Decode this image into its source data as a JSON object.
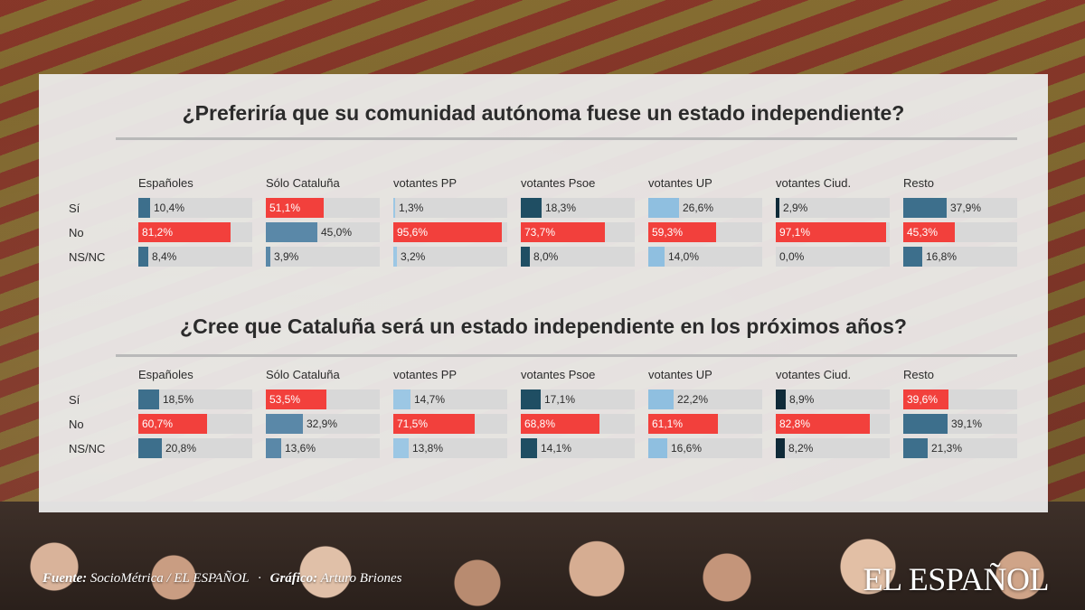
{
  "colors": {
    "red": "#f2403c",
    "blue_light": "#8fbfe0",
    "blue_mid": "#5a88a8",
    "blue_dark": "#1f4e63",
    "navy": "#0f2a38",
    "cell_bg": "#d8d8d8"
  },
  "chart_data": [
    {
      "type": "bar",
      "title": "¿Preferiría que su comunidad autónoma fuese un estado independiente?",
      "columns": [
        "Españoles",
        "Sólo Cataluña",
        "votantes PP",
        "votantes Psoe",
        "votantes UP",
        "votantes Ciud.",
        "Resto"
      ],
      "rows": [
        "Sí",
        "No",
        "NS/NC"
      ],
      "series": [
        {
          "name": "Sí",
          "values": [
            10.4,
            51.1,
            1.3,
            18.3,
            26.6,
            2.9,
            37.9
          ],
          "labels": [
            "10,4%",
            "51,1%",
            "1,3%",
            "18,3%",
            "26,6%",
            "2,9%",
            "37,9%"
          ]
        },
        {
          "name": "No",
          "values": [
            81.2,
            45.0,
            95.6,
            73.7,
            59.3,
            97.1,
            45.3
          ],
          "labels": [
            "81,2%",
            "45,0%",
            "95,6%",
            "73,7%",
            "59,3%",
            "97,1%",
            "45,3%"
          ]
        },
        {
          "name": "NS/NC",
          "values": [
            8.4,
            3.9,
            3.2,
            8.0,
            14.0,
            0.0,
            16.8
          ],
          "labels": [
            "8,4%",
            "3,9%",
            "3,2%",
            "8,0%",
            "14,0%",
            "0,0%",
            "16,8%"
          ]
        }
      ],
      "column_colors": [
        "#3d6f8c",
        "#5a88a8",
        "#9cc7e4",
        "#1f4e63",
        "#8fbfe0",
        "#0f2a38",
        "#3d6f8c"
      ],
      "highlight_color": "#f2403c",
      "highlight": [
        [
          false,
          true,
          false,
          false,
          false,
          false,
          false
        ],
        [
          true,
          false,
          true,
          true,
          true,
          true,
          true
        ],
        [
          false,
          false,
          false,
          false,
          false,
          false,
          false
        ]
      ],
      "ylim": [
        0,
        100
      ]
    },
    {
      "type": "bar",
      "title": "¿Cree que Cataluña será un estado independiente en los próximos años?",
      "columns": [
        "Españoles",
        "Sólo Cataluña",
        "votantes PP",
        "votantes Psoe",
        "votantes UP",
        "votantes Ciud.",
        "Resto"
      ],
      "rows": [
        "Sí",
        "No",
        "NS/NC"
      ],
      "series": [
        {
          "name": "Sí",
          "values": [
            18.5,
            53.5,
            14.7,
            17.1,
            22.2,
            8.9,
            39.6
          ],
          "labels": [
            "18,5%",
            "53,5%",
            "14,7%",
            "17,1%",
            "22,2%",
            "8,9%",
            "39,6%"
          ]
        },
        {
          "name": "No",
          "values": [
            60.7,
            32.9,
            71.5,
            68.8,
            61.1,
            82.8,
            39.1
          ],
          "labels": [
            "60,7%",
            "32,9%",
            "71,5%",
            "68,8%",
            "61,1%",
            "82,8%",
            "39,1%"
          ]
        },
        {
          "name": "NS/NC",
          "values": [
            20.8,
            13.6,
            13.8,
            14.1,
            16.6,
            8.2,
            21.3
          ],
          "labels": [
            "20,8%",
            "13,6%",
            "13,8%",
            "14,1%",
            "16,6%",
            "8,2%",
            "21,3%"
          ]
        }
      ],
      "column_colors": [
        "#3d6f8c",
        "#5a88a8",
        "#9cc7e4",
        "#1f4e63",
        "#8fbfe0",
        "#0f2a38",
        "#3d6f8c"
      ],
      "highlight_color": "#f2403c",
      "highlight": [
        [
          false,
          true,
          false,
          false,
          false,
          false,
          true
        ],
        [
          true,
          false,
          true,
          true,
          true,
          true,
          false
        ],
        [
          false,
          false,
          false,
          false,
          false,
          false,
          false
        ]
      ],
      "ylim": [
        0,
        100
      ]
    }
  ],
  "footer": {
    "source_label": "Fuente:",
    "source_text": "SocioMétrica / EL ESPAÑOL",
    "separator": "·",
    "graphic_label": "Gráfico:",
    "graphic_text": "Arturo Briones"
  },
  "brand": "EL ESPAÑOL"
}
